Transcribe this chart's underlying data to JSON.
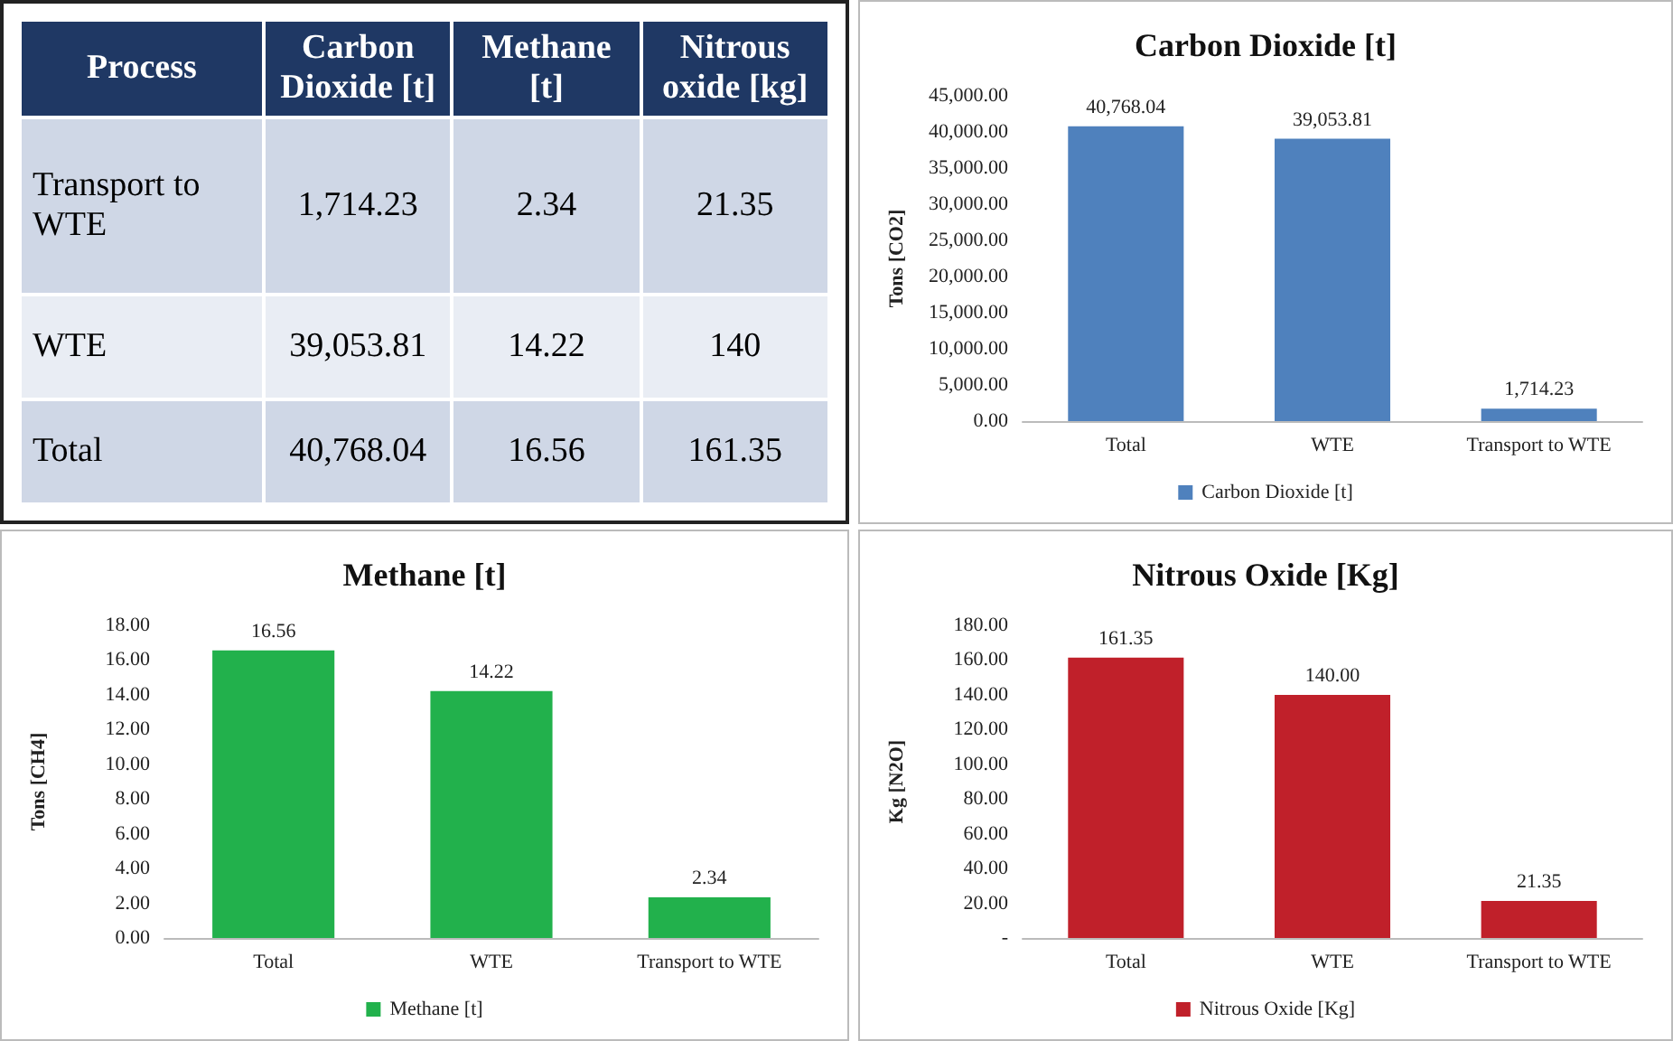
{
  "chart_data": [
    {
      "type": "other",
      "categories": [
        "Process",
        "Carbon Dioxide [t]",
        "Methane [t]",
        "Nitrous oxide [kg]"
      ],
      "y_categories": [
        "Transport to WTE",
        "WTE",
        "Total"
      ],
      "cell_labels": [
        [
          "1,714.23",
          "2.34",
          "21.35"
        ],
        [
          "39,053.81",
          "14.22",
          "140"
        ],
        [
          "40,768.04",
          "16.56",
          "161.35"
        ]
      ]
    },
    {
      "type": "bar",
      "title": "Carbon Dioxide [t]",
      "ylabel": "Tons [CO2]",
      "categories": [
        "Total",
        "WTE",
        "Transport to WTE"
      ],
      "series": [
        {
          "name": "Carbon Dioxide [t]",
          "color": "#4f81bd",
          "values": [
            40768.04,
            39053.81,
            1714.23
          ],
          "value_labels": [
            "40,768.04",
            "39,053.81",
            "1,714.23"
          ]
        }
      ],
      "ylim": [
        0,
        45000
      ],
      "yticks": [
        {
          "value": 0,
          "label": "0.00"
        },
        {
          "value": 5000,
          "label": "5,000.00"
        },
        {
          "value": 10000,
          "label": "10,000.00"
        },
        {
          "value": 15000,
          "label": "15,000.00"
        },
        {
          "value": 20000,
          "label": "20,000.00"
        },
        {
          "value": 25000,
          "label": "25,000.00"
        },
        {
          "value": 30000,
          "label": "30,000.00"
        },
        {
          "value": 35000,
          "label": "35,000.00"
        },
        {
          "value": 40000,
          "label": "40,000.00"
        },
        {
          "value": 45000,
          "label": "45,000.00"
        }
      ],
      "legend": "bottom",
      "grid": false
    },
    {
      "type": "bar",
      "title": "Methane [t]",
      "ylabel": "Tons [CH4]",
      "categories": [
        "Total",
        "WTE",
        "Transport to WTE"
      ],
      "series": [
        {
          "name": "Methane [t]",
          "color": "#22b14c",
          "values": [
            16.56,
            14.22,
            2.34
          ],
          "value_labels": [
            "16.56",
            "14.22",
            "2.34"
          ]
        }
      ],
      "ylim": [
        0,
        18
      ],
      "yticks": [
        {
          "value": 0,
          "label": "0.00"
        },
        {
          "value": 2,
          "label": "2.00"
        },
        {
          "value": 4,
          "label": "4.00"
        },
        {
          "value": 6,
          "label": "6.00"
        },
        {
          "value": 8,
          "label": "8.00"
        },
        {
          "value": 10,
          "label": "10.00"
        },
        {
          "value": 12,
          "label": "12.00"
        },
        {
          "value": 14,
          "label": "14.00"
        },
        {
          "value": 16,
          "label": "16.00"
        },
        {
          "value": 18,
          "label": "18.00"
        }
      ],
      "legend": "bottom",
      "grid": false
    },
    {
      "type": "bar",
      "title": "Nitrous Oxide [Kg]",
      "ylabel": "Kg [N2O]",
      "categories": [
        "Total",
        "WTE",
        "Transport to WTE"
      ],
      "series": [
        {
          "name": "Nitrous Oxide [Kg]",
          "color": "#c0202a",
          "values": [
            161.35,
            140.0,
            21.35
          ],
          "value_labels": [
            "161.35",
            "140.00",
            "21.35"
          ]
        }
      ],
      "ylim": [
        0,
        180
      ],
      "yticks": [
        {
          "value": 0,
          "label": "-"
        },
        {
          "value": 20,
          "label": "20.00"
        },
        {
          "value": 40,
          "label": "40.00"
        },
        {
          "value": 60,
          "label": "60.00"
        },
        {
          "value": 80,
          "label": "80.00"
        },
        {
          "value": 100,
          "label": "100.00"
        },
        {
          "value": 120,
          "label": "120.00"
        },
        {
          "value": 140,
          "label": "140.00"
        },
        {
          "value": 160,
          "label": "160.00"
        },
        {
          "value": 180,
          "label": "180.00"
        }
      ],
      "legend": "bottom",
      "grid": false
    }
  ]
}
